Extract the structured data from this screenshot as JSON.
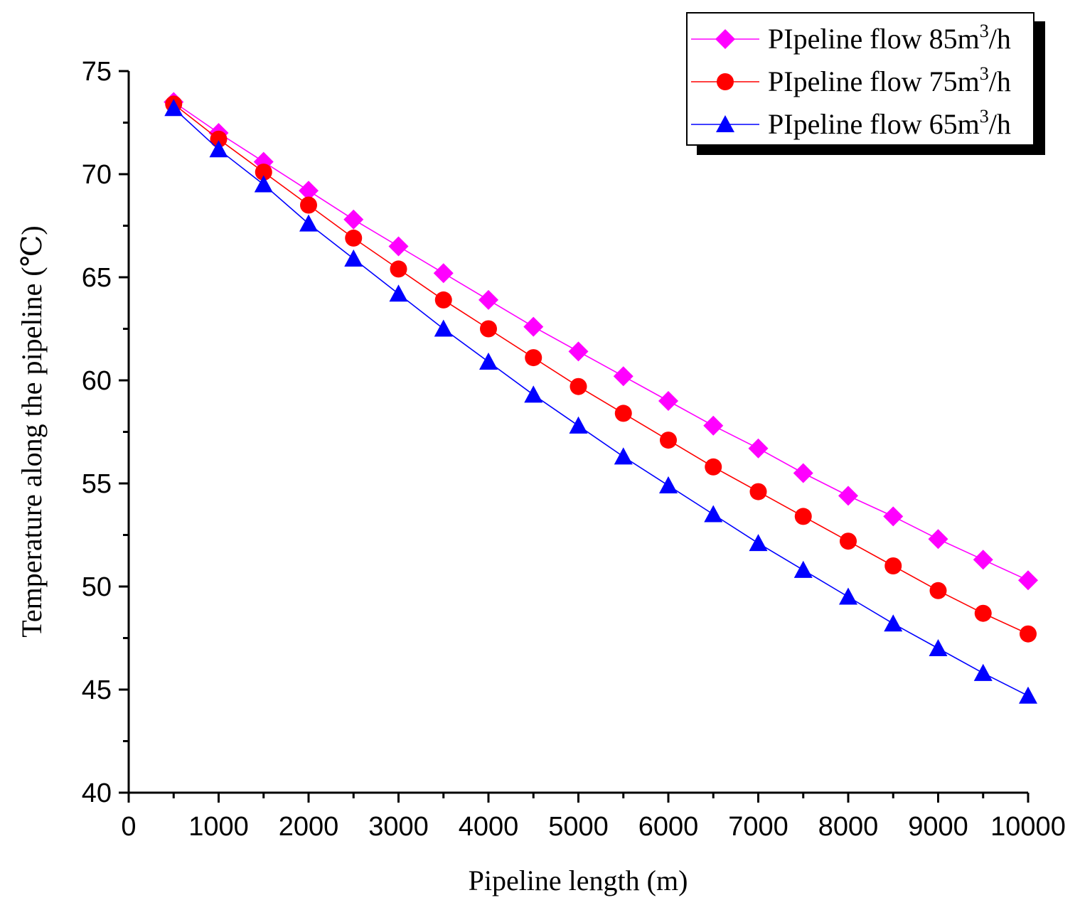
{
  "chart_data": {
    "type": "line",
    "title": "",
    "xlabel": "Pipeline length (m)",
    "ylabel": "Temperature along the pipeline (℃)",
    "xlim": [
      0,
      10000
    ],
    "ylim": [
      40,
      75
    ],
    "x_ticks": [
      "0",
      "1000",
      "2000",
      "3000",
      "4000",
      "5000",
      "6000",
      "7000",
      "8000",
      "9000",
      "10000"
    ],
    "y_ticks": [
      "40",
      "45",
      "50",
      "55",
      "60",
      "65",
      "70",
      "75"
    ],
    "grid": false,
    "legend_position": "top-right",
    "x": [
      500,
      1000,
      1500,
      2000,
      2500,
      3000,
      3500,
      4000,
      4500,
      5000,
      5500,
      6000,
      6500,
      7000,
      7500,
      8000,
      8500,
      9000,
      9500,
      10000
    ],
    "series": [
      {
        "name": "PIpeline flow 85m",
        "name_sup": "3",
        "name_tail": "/h",
        "color": "#ff00ff",
        "marker": "diamond",
        "values": [
          73.5,
          72.0,
          70.6,
          69.2,
          67.8,
          66.5,
          65.2,
          63.9,
          62.6,
          61.4,
          60.2,
          59.0,
          57.8,
          56.7,
          55.5,
          54.4,
          53.4,
          52.3,
          51.3,
          50.3
        ]
      },
      {
        "name": "PIpeline flow 75m",
        "name_sup": "3",
        "name_tail": "/h",
        "color": "#ff0000",
        "marker": "circle",
        "values": [
          73.4,
          71.7,
          70.1,
          68.5,
          66.9,
          65.4,
          63.9,
          62.5,
          61.1,
          59.7,
          58.4,
          57.1,
          55.8,
          54.6,
          53.4,
          52.2,
          51.0,
          49.8,
          48.7,
          47.7
        ]
      },
      {
        "name": "PIpeline flow 65m",
        "name_sup": "3",
        "name_tail": "/h",
        "color": "#0000ff",
        "marker": "triangle",
        "values": [
          73.2,
          71.2,
          69.5,
          67.6,
          65.9,
          64.2,
          62.5,
          60.9,
          59.3,
          57.8,
          56.3,
          54.9,
          53.5,
          52.1,
          50.8,
          49.5,
          48.2,
          47.0,
          45.8,
          44.7
        ]
      }
    ]
  }
}
